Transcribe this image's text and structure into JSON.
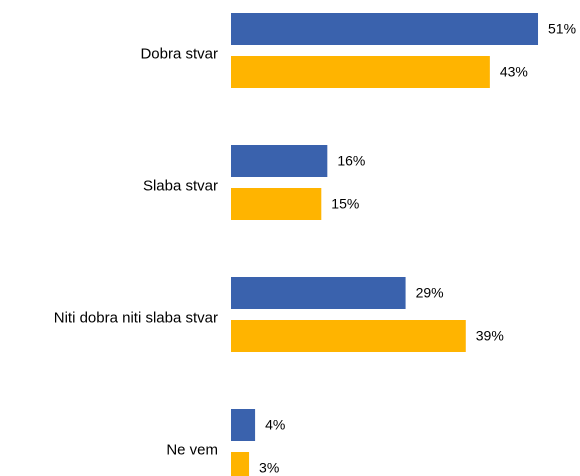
{
  "chart_data": {
    "type": "bar",
    "orientation": "horizontal",
    "categories": [
      "Dobra stvar",
      "Slaba stvar",
      "Niti dobra niti slaba stvar",
      "Ne vem"
    ],
    "series": [
      {
        "color": "#3a62ad",
        "values": [
          51,
          16,
          29,
          4
        ],
        "value_labels": [
          "51%",
          "16%",
          "29%",
          "4%"
        ]
      },
      {
        "color": "#ffb400",
        "values": [
          43,
          15,
          39,
          3
        ],
        "value_labels": [
          "43%",
          "15%",
          "39%",
          "3%"
        ]
      }
    ]
  }
}
